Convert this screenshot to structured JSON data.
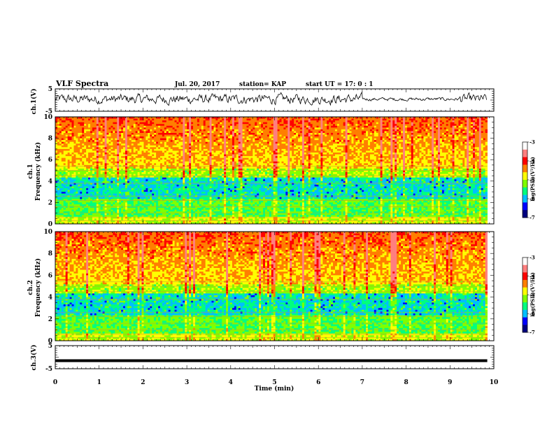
{
  "header": {
    "title": "VLF Spectra",
    "date": "Jul. 20, 2017",
    "station": "station= KAP",
    "start": "start UT = 17: 0 : 1"
  },
  "colors": {
    "colormap": [
      "#00007f",
      "#0000ff",
      "#00bfff",
      "#00ff7f",
      "#7fff00",
      "#ffff00",
      "#ff7f00",
      "#ff0000",
      "#ff7f7f",
      "#ffffff"
    ],
    "trace": "#000000"
  },
  "chart_data": [
    {
      "type": "line",
      "ylabel": "ch.1(V)",
      "ylim": [
        -5,
        5
      ],
      "yticks": [
        "5",
        "-5"
      ],
      "description_mode": "noisy waveform",
      "xlim": [
        0,
        10
      ]
    },
    {
      "type": "heatmap",
      "ylabel": "ch.1",
      "ylabel2": "Frequency (kHz)",
      "ylim": [
        0,
        10
      ],
      "yticks": [
        "10",
        "8",
        "6",
        "4",
        "2",
        "0"
      ],
      "xlim": [
        0,
        10
      ],
      "colorbar": {
        "label": "log(PSD)(V²/Hz)",
        "range": [
          -7,
          -3
        ],
        "ticks": [
          "-3",
          "-4",
          "-5",
          "-6",
          "-7"
        ]
      }
    },
    {
      "type": "heatmap",
      "ylabel": "ch.2",
      "ylabel2": "Frequency (kHz)",
      "ylim": [
        0,
        10
      ],
      "yticks": [
        "10",
        "8",
        "6",
        "4",
        "2",
        "0"
      ],
      "xlim": [
        0,
        10
      ],
      "colorbar": {
        "label": "log(PSD)(V²/Hz)",
        "range": [
          -7,
          -3
        ],
        "ticks": [
          "-3",
          "-4",
          "-5",
          "-6",
          "-7"
        ]
      }
    },
    {
      "type": "line",
      "ylabel": "ch.3(V)",
      "ylim": [
        -5,
        5
      ],
      "yticks": [
        "5",
        "-5"
      ],
      "xlim": [
        0,
        10
      ],
      "constant_value": -1.5
    }
  ],
  "xaxis": {
    "label": "Time (min)",
    "ticks": [
      "0",
      "1",
      "2",
      "3",
      "4",
      "5",
      "6",
      "7",
      "8",
      "9",
      "10"
    ]
  }
}
